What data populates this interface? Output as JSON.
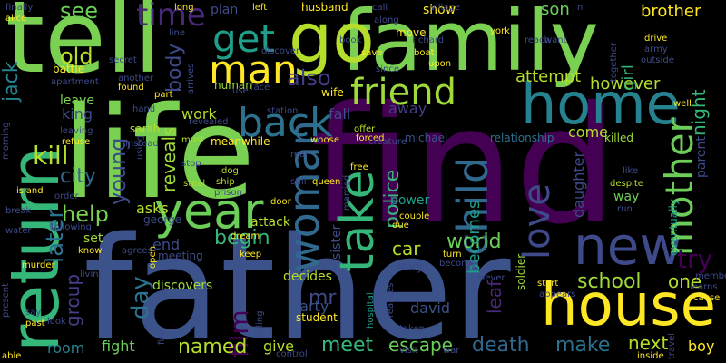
{
  "words": [
    {
      "text": "tell",
      "color": "#7AD151"
    },
    {
      "text": "family",
      "color": "#7AD151"
    },
    {
      "text": "find",
      "color": "#440154"
    },
    {
      "text": "father",
      "color": "#3B528B"
    },
    {
      "text": "life",
      "color": "#7AD151"
    },
    {
      "text": "go",
      "color": "#B5DE2B"
    },
    {
      "text": "home",
      "color": "#26828E"
    },
    {
      "text": "house",
      "color": "#FDE725"
    },
    {
      "text": "return",
      "color": "#35B779"
    },
    {
      "text": "new",
      "color": "#3E4A89"
    },
    {
      "text": "year",
      "color": "#6CCE59"
    },
    {
      "text": "woman",
      "color": "#31688E"
    },
    {
      "text": "take",
      "color": "#35B779"
    },
    {
      "text": "child",
      "color": "#31688E"
    },
    {
      "text": "mother",
      "color": "#6CCE59"
    },
    {
      "text": "man",
      "color": "#FDE725"
    },
    {
      "text": "friend",
      "color": "#9FDA3A"
    },
    {
      "text": "back",
      "color": "#2C728E"
    },
    {
      "text": "get",
      "color": "#1F9E89"
    },
    {
      "text": "time",
      "color": "#482878"
    },
    {
      "text": "see",
      "color": "#6CCE59"
    },
    {
      "text": "love",
      "color": "#3E4A89"
    },
    {
      "text": "death",
      "color": "#31688E"
    },
    {
      "text": "meet",
      "color": "#35B779"
    },
    {
      "text": "film",
      "color": "#440154"
    },
    {
      "text": "named",
      "color": "#B5DE2B"
    },
    {
      "text": "school",
      "color": "#9FDA3A"
    },
    {
      "text": "world",
      "color": "#6CCE59"
    },
    {
      "text": "later",
      "color": "#2C728E"
    },
    {
      "text": "day",
      "color": "#2C728E"
    },
    {
      "text": "begin",
      "color": "#35B779"
    },
    {
      "text": "police",
      "color": "#35B779"
    },
    {
      "text": "kill",
      "color": "#B5DE2B"
    },
    {
      "text": "old",
      "color": "#B5DE2B"
    },
    {
      "text": "jack",
      "color": "#26828E"
    },
    {
      "text": "help",
      "color": "#7AD151"
    },
    {
      "text": "city",
      "color": "#31688E"
    },
    {
      "text": "young",
      "color": "#3E4A89"
    },
    {
      "text": "reveals",
      "color": "#9FDA3A"
    },
    {
      "text": "body",
      "color": "#3E4A89"
    },
    {
      "text": "also",
      "color": "#433E85"
    },
    {
      "text": "attempt",
      "color": "#B5DE2B"
    },
    {
      "text": "however",
      "color": "#B5DE2B"
    },
    {
      "text": "brother",
      "color": "#FDE725"
    },
    {
      "text": "son",
      "color": "#6CCE59"
    },
    {
      "text": "girl",
      "color": "#35B779"
    },
    {
      "text": "night",
      "color": "#35B779"
    },
    {
      "text": "try",
      "color": "#440154"
    },
    {
      "text": "one",
      "color": "#B5DE2B"
    },
    {
      "text": "next",
      "color": "#B5DE2B"
    },
    {
      "text": "boy",
      "color": "#FDE725"
    },
    {
      "text": "make",
      "color": "#2C728E"
    },
    {
      "text": "escape",
      "color": "#6CCE59"
    },
    {
      "text": "give",
      "color": "#B5DE2B"
    },
    {
      "text": "fight",
      "color": "#6CCE59"
    },
    {
      "text": "room",
      "color": "#26828E"
    },
    {
      "text": "group",
      "color": "#433E85"
    },
    {
      "text": "car",
      "color": "#B5DE2B"
    },
    {
      "text": "mr",
      "color": "#3E4A89"
    },
    {
      "text": "party",
      "color": "#3B528B"
    },
    {
      "text": "david",
      "color": "#3B528B"
    },
    {
      "text": "leaf",
      "color": "#482878"
    },
    {
      "text": "becomes",
      "color": "#1F9E89"
    },
    {
      "text": "daughter",
      "color": "#3E4A89"
    },
    {
      "text": "parent",
      "color": "#3E4A89"
    },
    {
      "text": "sister",
      "color": "#3E4A89"
    },
    {
      "text": "end",
      "color": "#3E4A89"
    },
    {
      "text": "asks",
      "color": "#B5DE2B"
    },
    {
      "text": "work",
      "color": "#B5DE2B"
    },
    {
      "text": "king",
      "color": "#3E4A89"
    },
    {
      "text": "come",
      "color": "#B5DE2B"
    },
    {
      "text": "fall",
      "color": "#3E4A89"
    },
    {
      "text": "show",
      "color": "#FDE725"
    },
    {
      "text": "away",
      "color": "#433E85"
    },
    {
      "text": "leave",
      "color": "#7AD151"
    },
    {
      "text": "plan",
      "color": "#3E4A89"
    },
    {
      "text": "power",
      "color": "#1F9E89"
    },
    {
      "text": "way",
      "color": "#6CCE59"
    },
    {
      "text": "discovers",
      "color": "#9FDA3A"
    },
    {
      "text": "decides",
      "color": "#B5DE2B"
    },
    {
      "text": "story",
      "color": "#3E4A89"
    },
    {
      "text": "set",
      "color": "#9FDA3A"
    },
    {
      "text": "attack",
      "color": "#B5DE2B"
    },
    {
      "text": "killed",
      "color": "#9FDA3A"
    },
    {
      "text": "relationship",
      "color": "#2C728E"
    },
    {
      "text": "meanwhile",
      "color": "#FDE725"
    },
    {
      "text": "husband",
      "color": "#FDE725"
    },
    {
      "text": "michael",
      "color": "#3B528B"
    },
    {
      "text": "soldier",
      "color": "#9FDA3A"
    },
    {
      "text": "student",
      "color": "#FDE725"
    },
    {
      "text": "human",
      "color": "#9FDA3A"
    },
    {
      "text": "sarah",
      "color": "#B5DE2B"
    },
    {
      "text": "george",
      "color": "#3E4A89"
    },
    {
      "text": "eventually",
      "color": "#1F9E89"
    },
    {
      "text": "wife",
      "color": "#FDE725"
    },
    {
      "text": "meeting",
      "color": "#3E4A89"
    },
    {
      "text": "move",
      "color": "#FDE725"
    },
    {
      "text": "offer",
      "color": "#B5DE2B"
    },
    {
      "text": "forced",
      "color": "#FDE725"
    },
    {
      "text": "free",
      "color": "#FDE725"
    },
    {
      "text": "hospital",
      "color": "#1F9E89"
    },
    {
      "text": "realizes",
      "color": "#3E4A89"
    },
    {
      "text": "visit",
      "color": "#3E4A89"
    },
    {
      "text": "war",
      "color": "#3E4A89"
    },
    {
      "text": "instead",
      "color": "#3E4A89"
    },
    {
      "text": "leaving",
      "color": "#3E4A89"
    },
    {
      "text": "another",
      "color": "#3E4A89"
    },
    {
      "text": "arrives",
      "color": "#3E4A89"
    },
    {
      "text": "must",
      "color": "#B5DE2B"
    },
    {
      "text": "dog",
      "color": "#B5DE2B"
    },
    {
      "text": "ship",
      "color": "#B5DE2B"
    },
    {
      "text": "steal",
      "color": "#B5DE2B"
    },
    {
      "text": "dream",
      "color": "#FDE725"
    },
    {
      "text": "agrees",
      "color": "#3E4A89"
    },
    {
      "text": "keep",
      "color": "#FDE725"
    },
    {
      "text": "say",
      "color": "#3E4A89"
    },
    {
      "text": "past",
      "color": "#FDE725"
    },
    {
      "text": "look",
      "color": "#3E4A89"
    },
    {
      "text": "like",
      "color": "#3E4A89"
    },
    {
      "text": "despite",
      "color": "#B5DE2B"
    },
    {
      "text": "run",
      "color": "#3E4A89"
    },
    {
      "text": "start",
      "color": "#FDE725"
    },
    {
      "text": "turn",
      "color": "#FDE725"
    },
    {
      "text": "become",
      "color": "#3E4A89"
    },
    {
      "text": "taken",
      "color": "#3E4A89"
    },
    {
      "text": "couple",
      "color": "#FDE725"
    },
    {
      "text": "due",
      "color": "#FDE725"
    },
    {
      "text": "boat",
      "color": "#FDE725"
    },
    {
      "text": "upon",
      "color": "#FDE725"
    },
    {
      "text": "richard",
      "color": "#3E4A89"
    },
    {
      "text": "village",
      "color": "#3E4A89"
    },
    {
      "text": "york",
      "color": "#FDE725"
    },
    {
      "text": "reach",
      "color": "#3E4A89"
    },
    {
      "text": "want",
      "color": "#3E4A89"
    },
    {
      "text": "drive",
      "color": "#FDE725"
    },
    {
      "text": "army",
      "color": "#3E4A89"
    },
    {
      "text": "outside",
      "color": "#3E4A89"
    },
    {
      "text": "together",
      "color": "#3E4A89"
    },
    {
      "text": "finally",
      "color": "#3E4A89"
    },
    {
      "text": "alice",
      "color": "#FDE725"
    },
    {
      "text": "battle",
      "color": "#FDE725"
    },
    {
      "text": "apartment",
      "color": "#3E4A89"
    },
    {
      "text": "secret",
      "color": "#3E4A89"
    },
    {
      "text": "found",
      "color": "#FDE725"
    },
    {
      "text": "hand",
      "color": "#3E4A89"
    },
    {
      "text": "refuse",
      "color": "#FDE725"
    },
    {
      "text": "morning",
      "color": "#3E4A89"
    },
    {
      "text": "island",
      "color": "#FDE725"
    },
    {
      "text": "order",
      "color": "#3E4A89"
    },
    {
      "text": "break",
      "color": "#3E4A89"
    },
    {
      "text": "water",
      "color": "#3E4A89"
    },
    {
      "text": "following",
      "color": "#3E4A89"
    },
    {
      "text": "murder",
      "color": "#FDE725"
    },
    {
      "text": "know",
      "color": "#FDE725"
    },
    {
      "text": "living",
      "color": "#3E4A89"
    },
    {
      "text": "present",
      "color": "#3E4A89"
    },
    {
      "text": "able",
      "color": "#FDE725"
    },
    {
      "text": "fire",
      "color": "#3E4A89"
    },
    {
      "text": "killing",
      "color": "#3E4A89"
    },
    {
      "text": "control",
      "color": "#3E4A89"
    },
    {
      "text": "prison",
      "color": "#3E4A89"
    },
    {
      "text": "door",
      "color": "#FDE725"
    },
    {
      "text": "married",
      "color": "#3E4A89"
    },
    {
      "text": "queen",
      "color": "#FDE725"
    },
    {
      "text": "whose",
      "color": "#FDE725"
    },
    {
      "text": "creature",
      "color": "#3E4A89"
    },
    {
      "text": "call",
      "color": "#3E4A89"
    },
    {
      "text": "along",
      "color": "#3E4A89"
    },
    {
      "text": "book",
      "color": "#3E4A89"
    },
    {
      "text": "save",
      "color": "#FDE725"
    },
    {
      "text": "since",
      "color": "#3E4A89"
    },
    {
      "text": "use",
      "color": "#3E4A89"
    },
    {
      "text": "face",
      "color": "#3E4A89"
    },
    {
      "text": "long",
      "color": "#FDE725"
    },
    {
      "text": "left",
      "color": "#FDE725"
    },
    {
      "text": "discover",
      "color": "#3E4A89"
    },
    {
      "text": "revealed",
      "color": "#3E4A89"
    },
    {
      "text": "stop",
      "color": "#3E4A89"
    },
    {
      "text": "station",
      "color": "#3E4A89"
    },
    {
      "text": "using",
      "color": "#3E4A89"
    },
    {
      "text": "part",
      "color": "#FDE725"
    },
    {
      "text": "open",
      "color": "#FDE725"
    },
    {
      "text": "never",
      "color": "#3E4A89"
    },
    {
      "text": "appears",
      "color": "#3E4A89"
    },
    {
      "text": "member",
      "color": "#3E4A89"
    },
    {
      "text": "learns",
      "color": "#3E4A89"
    },
    {
      "text": "cause",
      "color": "#FDE725"
    },
    {
      "text": "travel",
      "color": "#3E4A89"
    },
    {
      "text": "inside",
      "color": "#FDE725"
    },
    {
      "text": "well",
      "color": "#FDE725"
    },
    {
      "text": "still",
      "color": "#3E4A89"
    },
    {
      "text": "real",
      "color": "#3E4A89"
    },
    {
      "text": "line",
      "color": "#3E4A89"
    },
    {
      "text": "n",
      "color": "#3E4A89"
    }
  ]
}
